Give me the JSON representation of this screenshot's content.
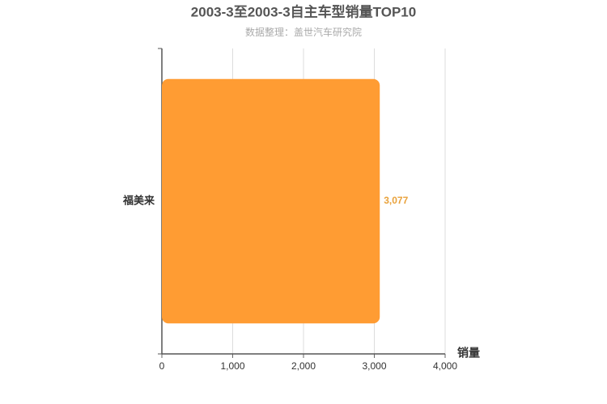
{
  "chart_data": {
    "type": "bar",
    "orientation": "horizontal",
    "title": "2003-3至2003-3自主车型销量TOP10",
    "subtitle": "数据整理：盖世汽车研究院",
    "x_label": "销量",
    "categories": [
      "福美来"
    ],
    "values": [
      3077
    ],
    "value_labels": [
      "3,077"
    ],
    "color": "#ff9c33",
    "xlim": [
      0,
      4000
    ],
    "xticks": [
      0,
      {
        "value": 1000,
        "label": "1,000"
      },
      {
        "value": 2000,
        "label": "2,000"
      },
      {
        "value": 3000,
        "label": "3,000"
      },
      {
        "value": 4000,
        "label": "4,000"
      }
    ],
    "grid": true
  }
}
